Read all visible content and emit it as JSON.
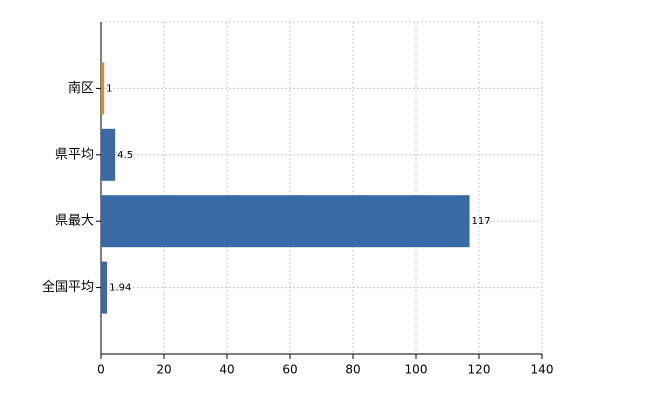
{
  "chart_data": {
    "type": "hbar",
    "categories": [
      "南区",
      "県平均",
      "県最大",
      "全国平均"
    ],
    "values": [
      1,
      4.5,
      117,
      1.94
    ],
    "colors": [
      "#e8891a",
      "#3a6aa5",
      "#3a6aa5",
      "#3a6aa5"
    ],
    "xlim": [
      0,
      140
    ],
    "xticks": [
      0,
      20,
      40,
      60,
      80,
      100,
      120,
      140
    ],
    "grid": true
  }
}
